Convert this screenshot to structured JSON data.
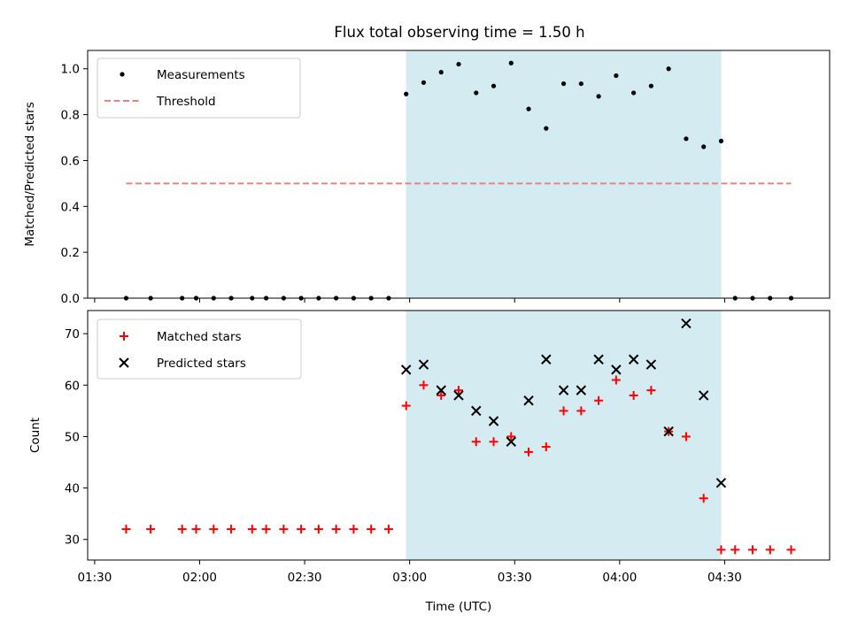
{
  "figure_title": "Flux total observing time = 1.50 h",
  "chart_data": [
    {
      "type": "scatter",
      "panel": "top",
      "title": "Flux total observing time = 1.50 h",
      "xlabel": "",
      "ylabel": "Matched/Predicted stars",
      "ylim": [
        0,
        1.08
      ],
      "yticks": [
        "0.0",
        "0.2",
        "0.4",
        "0.6",
        "0.8",
        "1.0"
      ],
      "ytick_values": [
        0,
        0.2,
        0.4,
        0.6,
        0.8,
        1.0
      ],
      "legend_position": "top-left",
      "shaded_interval": {
        "start": "02:59",
        "end": "04:29",
        "color": "#d4ebf1"
      },
      "series": [
        {
          "name": "Measurements",
          "marker": "dot",
          "color": "#000000",
          "x": [
            "01:39",
            "01:46",
            "01:55",
            "01:59",
            "02:04",
            "02:09",
            "02:15",
            "02:19",
            "02:24",
            "02:29",
            "02:34",
            "02:39",
            "02:44",
            "02:49",
            "02:54",
            "02:59",
            "03:04",
            "03:09",
            "03:14",
            "03:19",
            "03:24",
            "03:29",
            "03:34",
            "03:39",
            "03:44",
            "03:49",
            "03:54",
            "03:59",
            "04:04",
            "04:09",
            "04:14",
            "04:19",
            "04:24",
            "04:29",
            "04:33",
            "04:38",
            "04:43",
            "04:49"
          ],
          "values": [
            0,
            0,
            0,
            0,
            0,
            0,
            0,
            0,
            0,
            0,
            0,
            0,
            0,
            0,
            0,
            0.89,
            0.94,
            0.985,
            1.02,
            0.895,
            0.925,
            1.025,
            0.825,
            0.74,
            0.935,
            0.935,
            0.88,
            0.97,
            0.895,
            0.925,
            1.0,
            0.695,
            0.66,
            0.685,
            0,
            0,
            0,
            0
          ]
        },
        {
          "name": "Threshold",
          "style": "dashed",
          "color": "#f08080",
          "x": [
            "01:39",
            "04:49"
          ],
          "values": [
            0.5,
            0.5
          ]
        }
      ]
    },
    {
      "type": "scatter",
      "panel": "bottom",
      "title": "",
      "xlabel": "Time (UTC)",
      "ylabel": "Count",
      "ylim": [
        26,
        74.5
      ],
      "yticks": [
        "30",
        "40",
        "50",
        "60",
        "70"
      ],
      "ytick_values": [
        30,
        40,
        50,
        60,
        70
      ],
      "xticks": [
        "01:30",
        "02:00",
        "02:30",
        "03:00",
        "03:30",
        "04:00",
        "04:30"
      ],
      "xlim": [
        "01:28",
        "05:00"
      ],
      "legend_position": "top-left",
      "shaded_interval": {
        "start": "02:59",
        "end": "04:29",
        "color": "#d4ebf1"
      },
      "series": [
        {
          "name": "Matched stars",
          "marker": "plus",
          "color": "#ff0000",
          "x": [
            "01:39",
            "01:46",
            "01:55",
            "01:59",
            "02:04",
            "02:09",
            "02:15",
            "02:19",
            "02:24",
            "02:29",
            "02:34",
            "02:39",
            "02:44",
            "02:49",
            "02:54",
            "02:59",
            "03:04",
            "03:09",
            "03:14",
            "03:19",
            "03:24",
            "03:29",
            "03:34",
            "03:39",
            "03:44",
            "03:49",
            "03:54",
            "03:59",
            "04:04",
            "04:09",
            "04:14",
            "04:19",
            "04:24",
            "04:29",
            "04:33",
            "04:38",
            "04:43",
            "04:49"
          ],
          "values": [
            32,
            32,
            32,
            32,
            32,
            32,
            32,
            32,
            32,
            32,
            32,
            32,
            32,
            32,
            32,
            56,
            60,
            58,
            59,
            49,
            49,
            50,
            47,
            48,
            55,
            55,
            57,
            61,
            58,
            59,
            51,
            50,
            38,
            28,
            28,
            28,
            28,
            28
          ]
        },
        {
          "name": "Predicted stars",
          "marker": "x",
          "color": "#000000",
          "x": [
            "02:59",
            "03:04",
            "03:09",
            "03:14",
            "03:19",
            "03:24",
            "03:29",
            "03:34",
            "03:39",
            "03:44",
            "03:49",
            "03:54",
            "03:59",
            "04:04",
            "04:09",
            "04:14",
            "04:19",
            "04:24",
            "04:29"
          ],
          "values": [
            63,
            64,
            59,
            58,
            55,
            53,
            49,
            57,
            65,
            59,
            59,
            65,
            63,
            65,
            64,
            51,
            72,
            58,
            41
          ]
        }
      ]
    }
  ]
}
